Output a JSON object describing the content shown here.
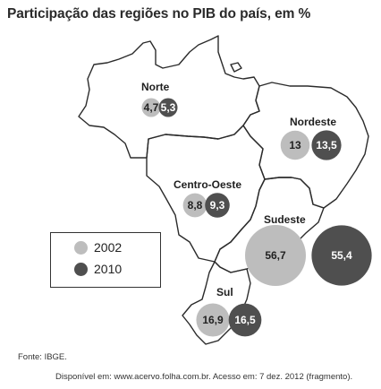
{
  "title": "Participação das regiões no PIB do país, em %",
  "colors": {
    "y2002": "#bdbdbd",
    "y2010": "#4f4f4f",
    "outline": "#2b2b2b"
  },
  "legend": {
    "items": [
      {
        "label": "2002",
        "color": "#bdbdbd"
      },
      {
        "label": "2010",
        "color": "#4f4f4f"
      }
    ]
  },
  "chart_data": {
    "type": "map-bubbles",
    "unit": "%",
    "series": [
      {
        "name": "2002",
        "color": "#bdbdbd"
      },
      {
        "name": "2010",
        "color": "#4f4f4f"
      }
    ],
    "regions": [
      {
        "name": "Norte",
        "values": {
          "2002": "4,7",
          "2010": "5,3"
        },
        "numeric": {
          "2002": 4.7,
          "2010": 5.3
        }
      },
      {
        "name": "Nordeste",
        "values": {
          "2002": "13",
          "2010": "13,5"
        },
        "numeric": {
          "2002": 13,
          "2010": 13.5
        }
      },
      {
        "name": "Centro-Oeste",
        "values": {
          "2002": "8,8",
          "2010": "9,3"
        },
        "numeric": {
          "2002": 8.8,
          "2010": 9.3
        }
      },
      {
        "name": "Sudeste",
        "values": {
          "2002": "56,7",
          "2010": "55,4"
        },
        "numeric": {
          "2002": 56.7,
          "2010": 55.4
        }
      },
      {
        "name": "Sul",
        "values": {
          "2002": "16,9",
          "2010": "16,5"
        },
        "numeric": {
          "2002": 16.9,
          "2010": 16.5
        }
      }
    ]
  },
  "source": "Fonte: IBGE.",
  "credit": "Disponível em: www.acervo.folha.com.br. Acesso em: 7 dez. 2012 (fragmento)."
}
